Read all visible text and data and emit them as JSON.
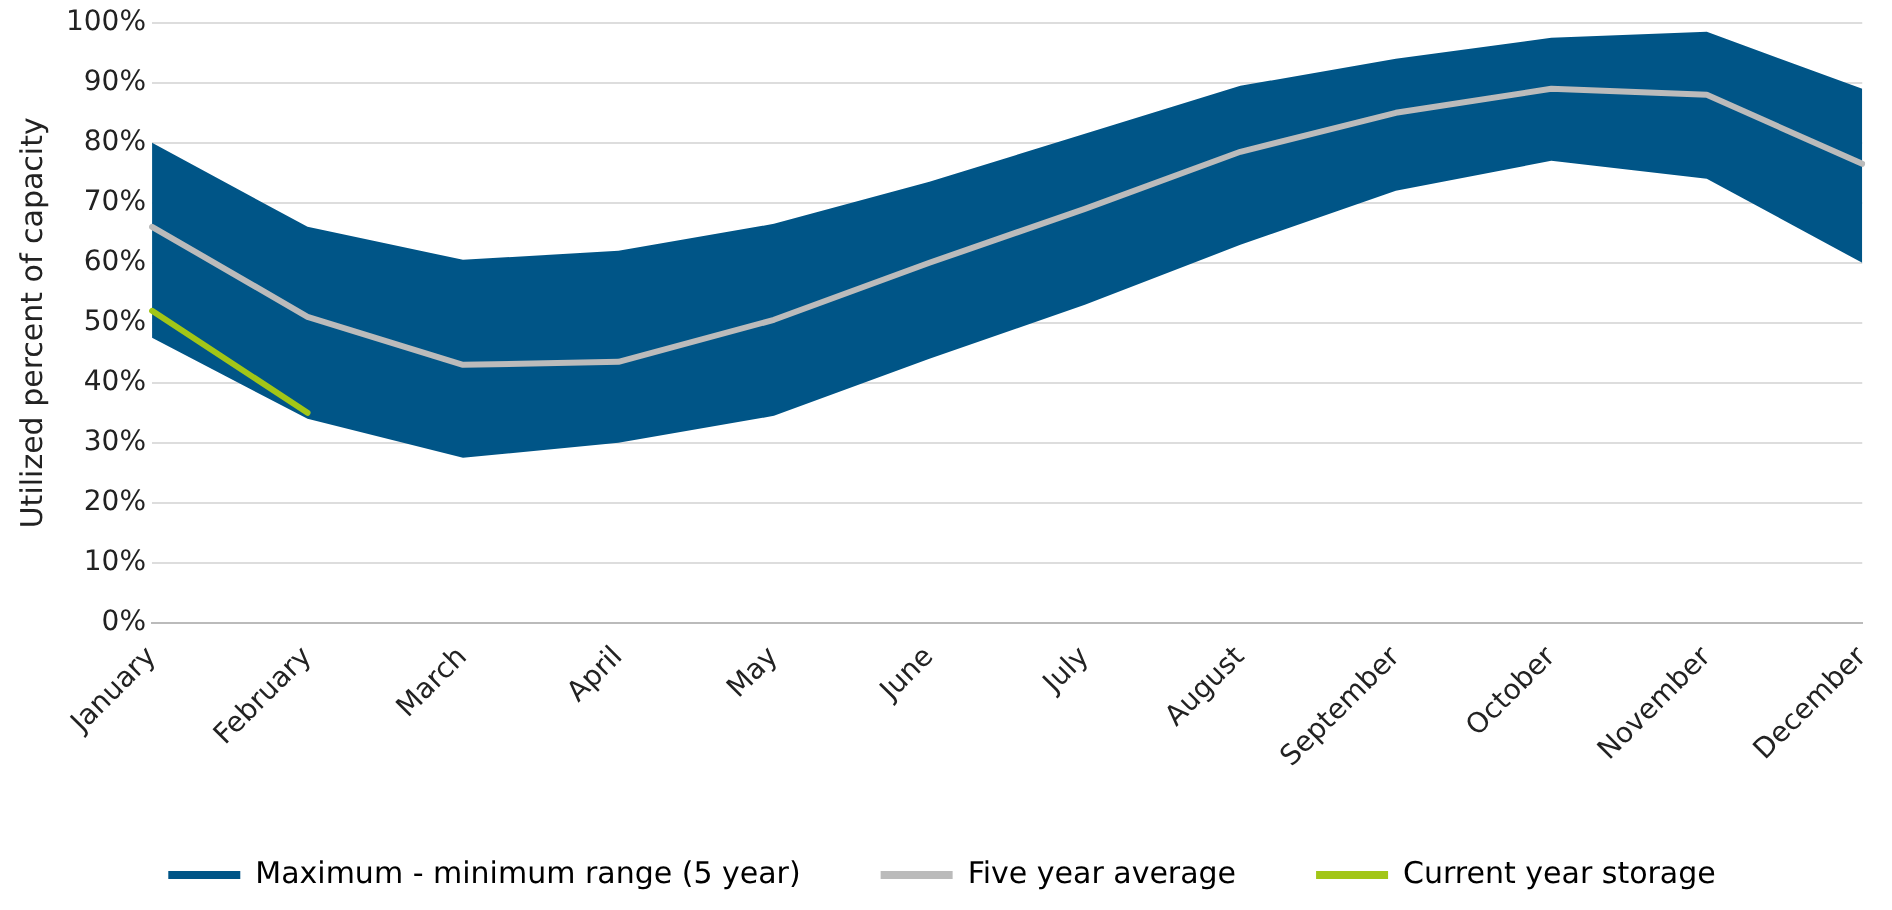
{
  "chart_data": {
    "type": "line",
    "ylabel": "Utilized percent of capacity",
    "categories": [
      "January",
      "February",
      "March",
      "April",
      "May",
      "June",
      "July",
      "August",
      "September",
      "October",
      "November",
      "December"
    ],
    "series": [
      {
        "name": "Maximum - minimum range (5 year)",
        "type": "area",
        "color": "#005587",
        "values": [
          null,
          null,
          null,
          null,
          null,
          null,
          null,
          null,
          null,
          null,
          null,
          null
        ],
        "lower": [
          47.5,
          34,
          27.5,
          30,
          34.5,
          44,
          53,
          63,
          72,
          77,
          74,
          60
        ],
        "upper": [
          80,
          66,
          60.5,
          62,
          66.5,
          73.5,
          81.5,
          89.5,
          94,
          97.5,
          98.5,
          89
        ]
      },
      {
        "name": "Five year average",
        "type": "line",
        "color": "#bbbbbb",
        "values": [
          66,
          51,
          43,
          43.5,
          50.5,
          60,
          69,
          78.5,
          85,
          89,
          88,
          76.5
        ]
      },
      {
        "name": "Current year storage",
        "type": "line",
        "color": "#a2c617",
        "values": [
          52,
          35,
          null,
          null,
          null,
          null,
          null,
          null,
          null,
          null,
          null,
          null
        ]
      }
    ],
    "ylim": [
      0,
      100
    ],
    "yticks": [
      {
        "value": 0,
        "label": "0%"
      },
      {
        "value": 10,
        "label": "10%"
      },
      {
        "value": 20,
        "label": "20%"
      },
      {
        "value": 30,
        "label": "30%"
      },
      {
        "value": 40,
        "label": "40%"
      },
      {
        "value": 50,
        "label": "50%"
      },
      {
        "value": 60,
        "label": "60%"
      },
      {
        "value": 70,
        "label": "70%"
      },
      {
        "value": 80,
        "label": "80%"
      },
      {
        "value": 90,
        "label": "90%"
      },
      {
        "value": 100,
        "label": "100%"
      }
    ],
    "grid": "y",
    "legend": "bottom",
    "marker": "none",
    "line_style": "solid"
  }
}
